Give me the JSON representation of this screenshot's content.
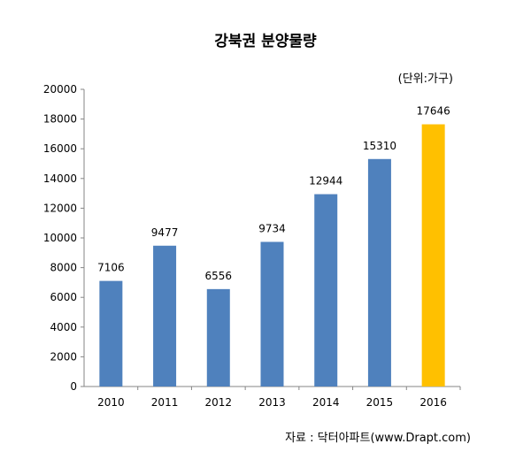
{
  "chart_data": {
    "type": "bar",
    "title": "강북권 분양물량",
    "unit_note": "(단위:가구)",
    "source": "자료 : 닥터아파트(www.Drapt.com)",
    "categories": [
      "2010",
      "2011",
      "2012",
      "2013",
      "2014",
      "2015",
      "2016"
    ],
    "values": [
      7106,
      9477,
      6556,
      9734,
      12944,
      15310,
      17646
    ],
    "ylim": [
      0,
      20000
    ],
    "yticks": [
      0,
      2000,
      4000,
      6000,
      8000,
      10000,
      12000,
      14000,
      16000,
      18000,
      20000
    ],
    "grid": false,
    "legend": "none",
    "colors": {
      "bar": "#4f81bd",
      "highlight": "#ffc000",
      "highlight_category": "2016"
    }
  }
}
